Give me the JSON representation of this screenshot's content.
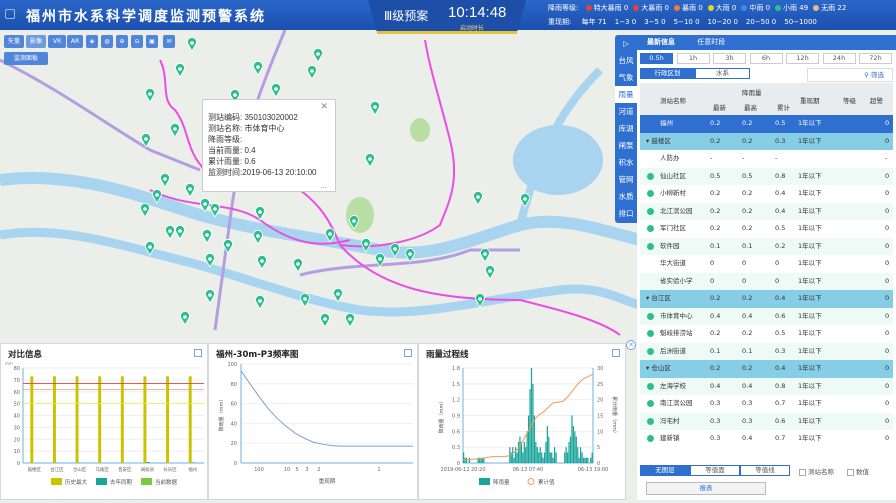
{
  "header": {
    "title": "福州市水系科学调度监测预警系统",
    "plan": "Ⅲ级预案",
    "time": "10:14:48",
    "time_label": "启动时长",
    "rain_level_label": "降雨等级:",
    "rain_levels": [
      {
        "label": "特大暴雨 0",
        "color": "#e0433a"
      },
      {
        "label": "大暴雨 0",
        "color": "#e0433a"
      },
      {
        "label": "暴雨 0",
        "color": "#f07b3b"
      },
      {
        "label": "大雨 0",
        "color": "#e8d630"
      },
      {
        "label": "中雨 0",
        "color": "#3b8fe0"
      },
      {
        "label": "小雨 49",
        "color": "#2bbf8e"
      },
      {
        "label": "无雨 22",
        "color": "#e8b98a"
      }
    ],
    "return_label": "重现期:",
    "returns": [
      "每年 71",
      "1−3 0",
      "3−5 0",
      "5−10 0",
      "10−20 0",
      "20−50 0",
      "50−1000"
    ]
  },
  "map": {
    "toolbar": [
      "矢量",
      "影像",
      "VR",
      "AR"
    ],
    "tool_icons": [
      "layers-icon",
      "globe-icon",
      "zoom-in-icon",
      "zoom-out-icon",
      "screenshot-icon",
      "message-icon"
    ],
    "panel_button": "监测面板",
    "popup": {
      "lines": [
        "测站编码: 350103020002",
        "测站名称: 市体育中心",
        "降雨等级:",
        "当前雨量: 0.4",
        "累计雨量: 0.6",
        "监测时间:2019-06-13 20:10:00"
      ],
      "more": "..."
    }
  },
  "side_tabs": [
    "▷",
    "台风",
    "气象",
    "雨量",
    "河道",
    "库湖",
    "闸泵",
    "积水",
    "管网",
    "水质",
    "排口"
  ],
  "panel": {
    "tabs": [
      "最新信息",
      "任意时段"
    ],
    "hours": [
      "0.5h",
      "1h",
      "3h",
      "6h",
      "12h",
      "24h",
      "72h"
    ],
    "modes": [
      "行政区划",
      "水系"
    ],
    "filter": "筛选",
    "headers": {
      "name": "测站名称",
      "rain": "降雨量",
      "latest": "最新",
      "max": "最高",
      "total": "累计",
      "ret": "重现期",
      "level": "等级",
      "warn": "超警"
    },
    "rows": [
      {
        "t": "top",
        "name": "福州",
        "v": [
          "0.2",
          "0.2",
          "0.5",
          "1年以下",
          "",
          "0"
        ]
      },
      {
        "t": "grp",
        "name": "▾ 鼓楼区",
        "v": [
          "0.2",
          "0.2",
          "0.3",
          "1年以下",
          "",
          "0"
        ]
      },
      {
        "t": "",
        "name": "人防办",
        "v": [
          "-",
          "-",
          "-",
          "",
          "",
          "-"
        ]
      },
      {
        "t": "s",
        "name": "仙山社区",
        "v": [
          "0.5",
          "0.5",
          "0.8",
          "1年以下",
          "",
          "0"
        ]
      },
      {
        "t": "s",
        "name": "小柳新村",
        "v": [
          "0.2",
          "0.2",
          "0.4",
          "1年以下",
          "",
          "0"
        ]
      },
      {
        "t": "s",
        "name": "北江滨公园",
        "v": [
          "0.2",
          "0.2",
          "0.4",
          "1年以下",
          "",
          "0"
        ]
      },
      {
        "t": "s",
        "name": "军门社区",
        "v": [
          "0.2",
          "0.2",
          "0.5",
          "1年以下",
          "",
          "0"
        ]
      },
      {
        "t": "s",
        "name": "软件园",
        "v": [
          "0.1",
          "0.1",
          "0.2",
          "1年以下",
          "",
          "0"
        ]
      },
      {
        "t": "",
        "name": "华大街道",
        "v": [
          "0",
          "0",
          "0",
          "1年以下",
          "",
          "0"
        ]
      },
      {
        "t": "",
        "name": "省实验小学",
        "v": [
          "0",
          "0",
          "0",
          "1年以下",
          "",
          "0"
        ]
      },
      {
        "t": "grp",
        "name": "▾ 台江区",
        "v": [
          "0.2",
          "0.2",
          "0.4",
          "1年以下",
          "",
          "0"
        ]
      },
      {
        "t": "s",
        "name": "市体育中心",
        "v": [
          "0.4",
          "0.4",
          "0.6",
          "1年以下",
          "",
          "0"
        ]
      },
      {
        "t": "s",
        "name": "魁岐排涝站",
        "v": [
          "0.2",
          "0.2",
          "0.5",
          "1年以下",
          "",
          "0"
        ]
      },
      {
        "t": "s",
        "name": "后洲街道",
        "v": [
          "0.1",
          "0.1",
          "0.3",
          "1年以下",
          "",
          "0"
        ]
      },
      {
        "t": "grp",
        "name": "▾ 仓山区",
        "v": [
          "0.2",
          "0.2",
          "0.4",
          "1年以下",
          "",
          "0"
        ]
      },
      {
        "t": "s",
        "name": "左海学校",
        "v": [
          "0.4",
          "0.4",
          "0.8",
          "1年以下",
          "",
          "0"
        ]
      },
      {
        "t": "s",
        "name": "南江滨公园",
        "v": [
          "0.3",
          "0.3",
          "0.7",
          "1年以下",
          "",
          "0"
        ]
      },
      {
        "t": "s",
        "name": "冯宅村",
        "v": [
          "0.3",
          "0.3",
          "0.6",
          "1年以下",
          "",
          "0"
        ]
      },
      {
        "t": "s",
        "name": "建新镇",
        "v": [
          "0.3",
          "0.4",
          "0.7",
          "1年以下",
          "",
          "0"
        ]
      }
    ],
    "layers": [
      "无图层",
      "等值面",
      "等值线"
    ],
    "checks": [
      "测站名称",
      "数值"
    ],
    "report": "报表"
  },
  "chart_data": [
    {
      "type": "bar",
      "title": "对比信息",
      "ylabel": "mm",
      "ylim": [
        0,
        80
      ],
      "yticks": [
        0,
        10,
        20,
        30,
        40,
        50,
        60,
        70,
        80
      ],
      "categories": [
        "鼓楼区",
        "台江区",
        "仓山区",
        "马尾区",
        "晋安区",
        "闽侯县",
        "长乐区",
        "福州"
      ],
      "series": [
        {
          "name": "历史最大",
          "color": "#c9c400",
          "values": [
            73,
            73,
            73,
            73,
            73,
            73,
            73,
            73
          ]
        },
        {
          "name": "去年同期",
          "color": "#1aa59a",
          "values": [
            0,
            0.3,
            0.3,
            0,
            0,
            0.8,
            0,
            0.5
          ]
        },
        {
          "name": "当前数据",
          "color": "#7ac943",
          "values": [
            0,
            0,
            0,
            0,
            0,
            0,
            0,
            0
          ]
        }
      ],
      "thresholds": [
        {
          "value": 67,
          "color": "#e0433a"
        },
        {
          "value": 62,
          "color": "#f0a060"
        },
        {
          "value": 50,
          "color": "#f0f04a"
        }
      ]
    },
    {
      "type": "line",
      "title": "福州-30m-P3频率图",
      "xlabel": "重现期",
      "ylabel": "降雨量（mm）",
      "ylim": [
        0,
        100
      ],
      "yticks": [
        0,
        20,
        40,
        60,
        80,
        100
      ],
      "xticks": [
        "100",
        "10",
        "5",
        "3",
        "2",
        "1"
      ],
      "series": [
        {
          "values": [
            93,
            80,
            67,
            55,
            45,
            37,
            30,
            25,
            21,
            19,
            17.5,
            17,
            17,
            17,
            17,
            17,
            17,
            17,
            17,
            17
          ]
        }
      ]
    },
    {
      "type": "bar",
      "title": "雨量过程线",
      "ylabel": "降雨量（mm）",
      "y2label": "累计雨量（mm）",
      "ylim": [
        0,
        1.8
      ],
      "yticks": [
        0,
        0.3,
        0.6,
        0.9,
        1.2,
        1.5,
        1.8
      ],
      "y2lim": [
        0,
        30
      ],
      "y2ticks": [
        0,
        5,
        10,
        15,
        20,
        25,
        30
      ],
      "xticks": [
        "2019-06-12 20:20",
        "06-13 07:40",
        "06-13 19:00"
      ],
      "series": [
        {
          "name": "降雨量",
          "color": "#1aa59a",
          "values": [
            0.2,
            0.1,
            0.1,
            0,
            0.1,
            0,
            0,
            0,
            0,
            0,
            0.1,
            0.1,
            0.1,
            0.1,
            0.1,
            0,
            0,
            0,
            0,
            0,
            0,
            0,
            0,
            0,
            0,
            0,
            0,
            0,
            0,
            0,
            0,
            0,
            0.3,
            0.2,
            0.3,
            0.1,
            0.3,
            0.2,
            0.4,
            0.5,
            0.4,
            0.2,
            0.4,
            0.3,
            0.6,
            0.9,
            1.4,
            1.8,
            1.5,
            0.9,
            0.4,
            0.3,
            0.2,
            0.3,
            0.2,
            0.1,
            0.2,
            0.4,
            0.7,
            0.5,
            0.2,
            0.2,
            0.1,
            0.3,
            0.2,
            0,
            0,
            0,
            0,
            0,
            0.2,
            0.3,
            0.2,
            0.4,
            0.5,
            0.9,
            0.7,
            0.6,
            0.5,
            0.3,
            0.1,
            0.3,
            0.2,
            0.1,
            0.1,
            0.1,
            0.1,
            0,
            0.1,
            0.2
          ]
        },
        {
          "name": "累计值",
          "color": "#f09a5a",
          "values": [
            1,
            1,
            1.2,
            1.3,
            1.5,
            1.8,
            2,
            2,
            2,
            2.2,
            3,
            4.5,
            7,
            10,
            13,
            15,
            16,
            17.5,
            19,
            19.2,
            19.5,
            21,
            23,
            25,
            26.5,
            27.3,
            28
          ]
        }
      ]
    }
  ]
}
